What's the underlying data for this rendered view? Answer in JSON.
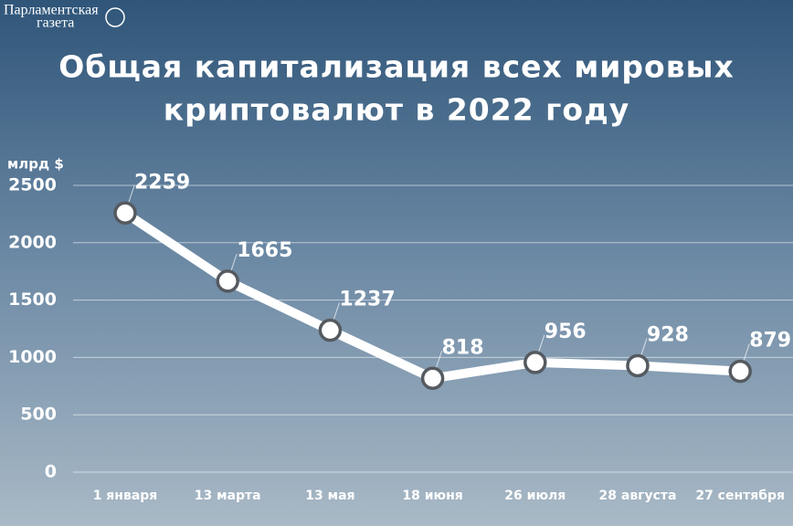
{
  "brand": [
    "Парламентская",
    "газета"
  ],
  "chart_data": {
    "type": "line",
    "title": [
      "Общая капитализация всех мировых",
      "криптовалют в 2022 году"
    ],
    "y_label": "млрд $",
    "categories": [
      "1 января",
      "13 марта",
      "13 мая",
      "18 июня",
      "26 июля",
      "28 августа",
      "27 сентября"
    ],
    "values": [
      2259,
      1665,
      1237,
      818,
      956,
      928,
      879
    ],
    "color": "#ffffff",
    "marker_stroke": "#555a60",
    "ylim": [
      0,
      2500
    ],
    "yticks": [
      0,
      500,
      1000,
      1500,
      2000,
      2500
    ],
    "grid": true
  }
}
